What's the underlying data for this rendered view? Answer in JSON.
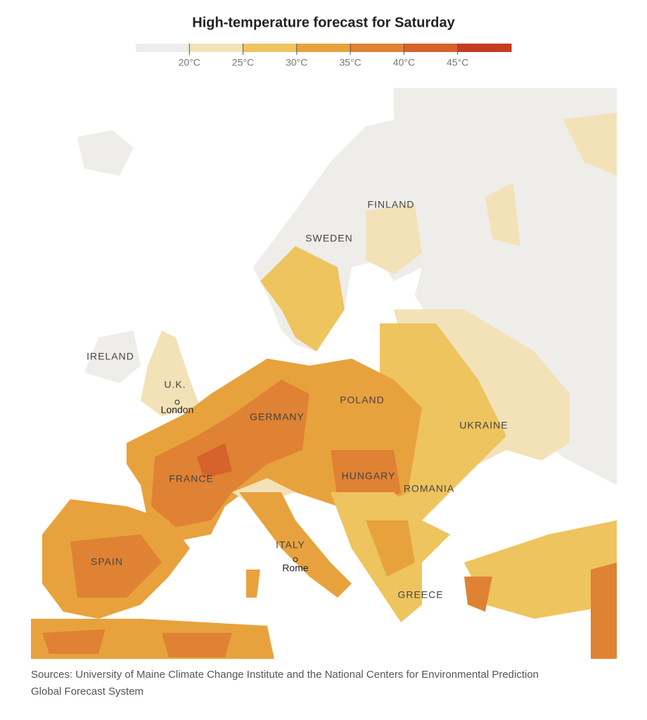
{
  "header": {
    "title": "High-temperature forecast for Saturday"
  },
  "legend": {
    "colors": [
      "#efedea",
      "#f3e2b8",
      "#eec45f",
      "#e8a23d",
      "#df8233",
      "#d5632b",
      "#c63b22"
    ],
    "ticks": [
      "20°C",
      "25°C",
      "30°C",
      "35°C",
      "40°C",
      "45°C"
    ]
  },
  "countries": [
    "FINLAND",
    "SWEDEN",
    "IRELAND",
    "U.K.",
    "GERMANY",
    "POLAND",
    "UKRAINE",
    "FRANCE",
    "HUNGARY",
    "ROMANIA",
    "SPAIN",
    "ITALY",
    "GREECE"
  ],
  "cities": [
    "London",
    "Rome"
  ],
  "source": {
    "lines": [
      "Sources: University of Maine Climate Change Institute and the National Centers for Environmental Prediction",
      "Global Forecast System"
    ]
  }
}
